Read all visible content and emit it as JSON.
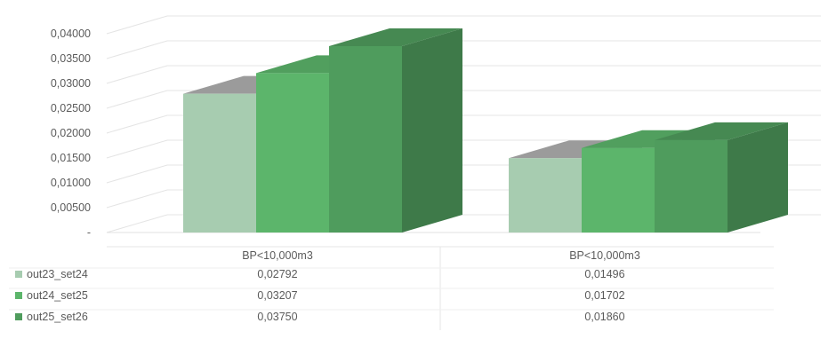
{
  "chart_data": {
    "type": "bar",
    "style": "3d-clustered-column-with-data-table",
    "categories": [
      "BP<10,000m3",
      "BP<10,000m3"
    ],
    "series": [
      {
        "name": "out23_set24",
        "values": [
          0.02792,
          0.01496
        ],
        "display": [
          "0,02792",
          "0,01496"
        ],
        "color": "#a7ccb0"
      },
      {
        "name": "out24_set25",
        "values": [
          0.03207,
          0.01702
        ],
        "display": [
          "0,03207",
          "0,01702"
        ],
        "color": "#5cb56b"
      },
      {
        "name": "out25_set26",
        "values": [
          0.0375,
          0.0186
        ],
        "display": [
          "0,03750",
          "0,01860"
        ],
        "color": "#4f9c5d"
      }
    ],
    "y_ticks": [
      "-",
      "0,00500",
      "0,01000",
      "0,01500",
      "0,02000",
      "0,02500",
      "0,03000",
      "0,03500",
      "0,04000"
    ],
    "ylim": [
      0,
      0.04
    ],
    "grid": true,
    "legend": "left-of-data-table",
    "title": "",
    "xlabel": "",
    "ylabel": ""
  }
}
